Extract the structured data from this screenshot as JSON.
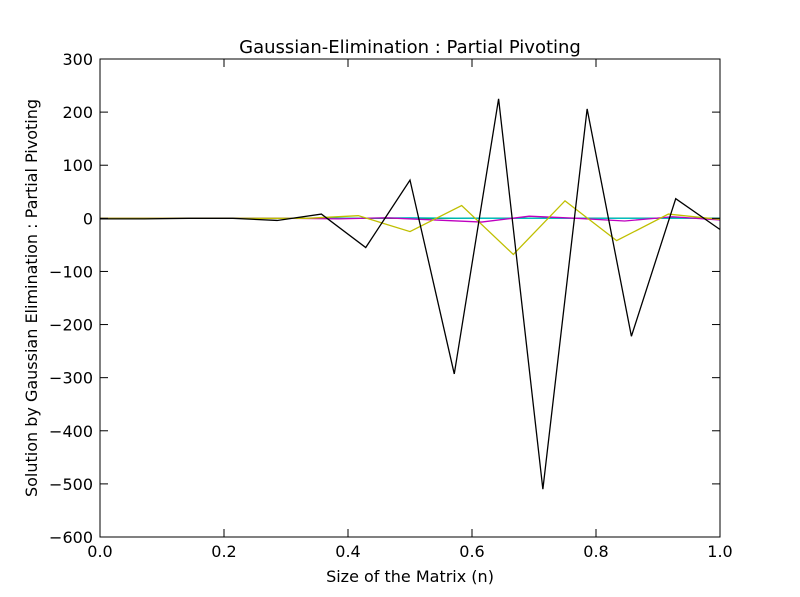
{
  "chart_data": {
    "type": "line",
    "title": "Gaussian-Elimination : Partial Pivoting",
    "xlabel": "Size of the Matrix (n)",
    "ylabel": "Solution by Gaussian Elimination : Partial Pivoting",
    "xlim": [
      0.0,
      1.0
    ],
    "ylim": [
      -600,
      300
    ],
    "xticks": [
      "0.0",
      "0.2",
      "0.4",
      "0.6",
      "0.8",
      "1.0"
    ],
    "yticks": [
      "300",
      "200",
      "100",
      "0",
      "−100",
      "−200",
      "−300",
      "−400",
      "−500",
      "−600"
    ],
    "grid": false,
    "legend": "none",
    "series": [
      {
        "color": "#0000ff",
        "x": [
          0.0,
          0.2,
          0.4,
          0.6,
          0.8,
          1.0
        ],
        "y": [
          0,
          0,
          0,
          0,
          0,
          0
        ]
      },
      {
        "color": "#008000",
        "x": [
          0.0,
          0.25,
          0.5,
          0.75,
          1.0
        ],
        "y": [
          0,
          0,
          0,
          0,
          0
        ]
      },
      {
        "color": "#00bfbf",
        "x": [
          0.0,
          0.1,
          0.2,
          0.3,
          0.4,
          0.5,
          0.6,
          0.7,
          0.8,
          0.9,
          1.0
        ],
        "y": [
          0,
          0,
          0,
          0,
          0,
          1,
          0,
          0,
          0,
          0,
          0
        ]
      },
      {
        "color": "#bf00bf",
        "x": [
          0.0,
          0.0769,
          0.1538,
          0.2308,
          0.3077,
          0.3846,
          0.4615,
          0.5385,
          0.6154,
          0.6923,
          0.7692,
          0.8462,
          0.9231,
          1.0
        ],
        "y": [
          0,
          0,
          0,
          0,
          0,
          -1,
          1,
          -3,
          -7,
          4,
          0,
          -5,
          3,
          -3
        ]
      },
      {
        "color": "#bfbf00",
        "x": [
          0.0,
          0.0833,
          0.1667,
          0.25,
          0.3333,
          0.4167,
          0.5,
          0.5833,
          0.6667,
          0.75,
          0.8333,
          0.9167,
          1.0
        ],
        "y": [
          0,
          0,
          0,
          0,
          0,
          5,
          -25,
          24,
          -68,
          33,
          -42,
          8,
          -2
        ]
      },
      {
        "color": "#000000",
        "x": [
          0.0,
          0.0714,
          0.1429,
          0.2143,
          0.2857,
          0.3571,
          0.4286,
          0.5,
          0.5714,
          0.6429,
          0.7143,
          0.7857,
          0.8571,
          0.9286,
          1.0
        ],
        "y": [
          -1,
          -1,
          0,
          0,
          -4,
          8,
          -55,
          72,
          -293,
          225,
          -510,
          206,
          -222,
          37,
          -21
        ]
      }
    ]
  }
}
